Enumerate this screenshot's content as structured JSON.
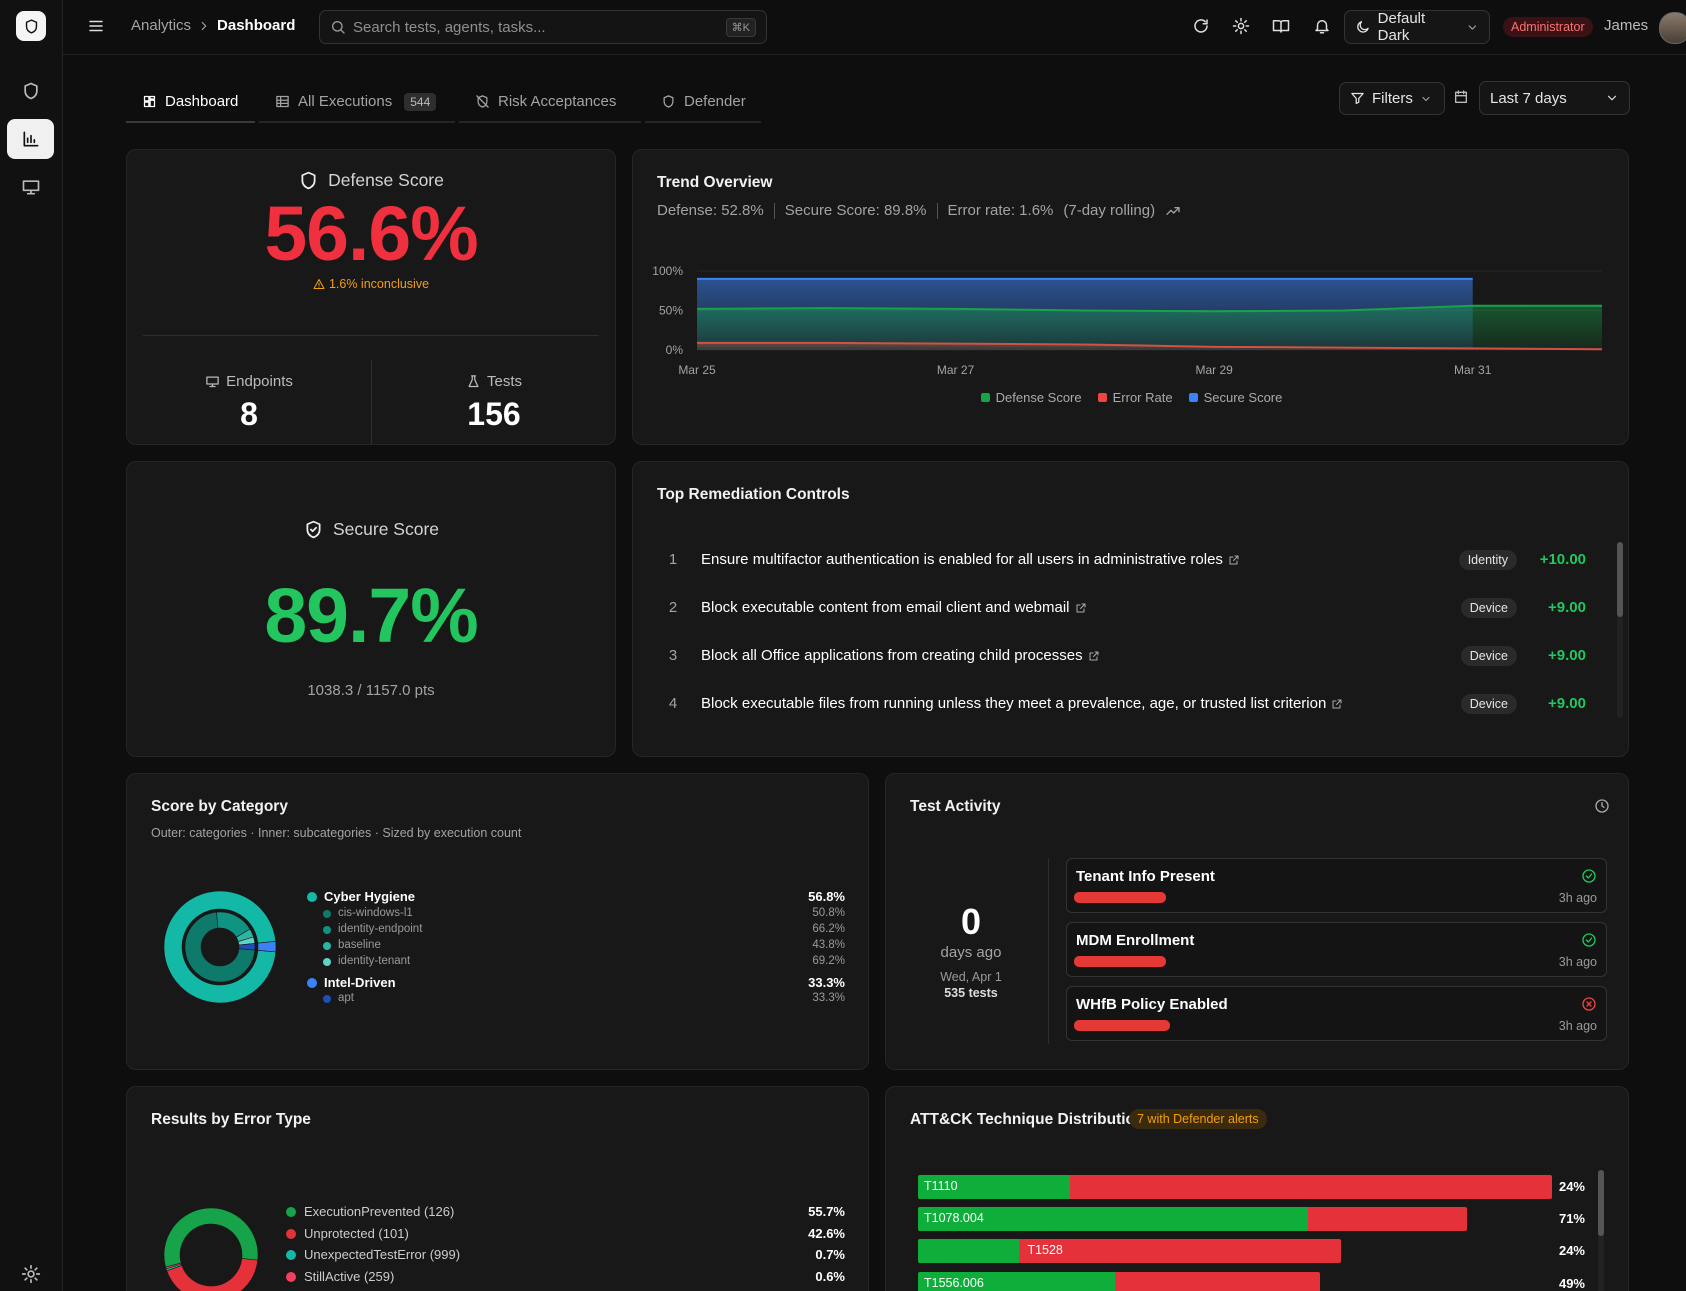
{
  "header": {
    "breadcrumb_parent": "Analytics",
    "breadcrumb_current": "Dashboard",
    "search_placeholder": "Search tests, agents, tasks...",
    "shortcut": "⌘K",
    "theme": "Default Dark",
    "role": "Administrator",
    "user": "James"
  },
  "tabs": {
    "items": [
      {
        "label": "Dashboard",
        "icon": "grid"
      },
      {
        "label": "All Executions",
        "icon": "table",
        "count": 544
      },
      {
        "label": "Risk Acceptances",
        "icon": "shieldoff"
      },
      {
        "label": "Defender",
        "icon": "shield"
      }
    ],
    "filters": "Filters",
    "range": "Last 7 days"
  },
  "defense_score": {
    "title": "Defense Score",
    "value": "56.6%",
    "note": "1.6% inconclusive",
    "endpoints_label": "Endpoints",
    "endpoints": 8,
    "tests_label": "Tests",
    "tests": 156
  },
  "secure_score": {
    "title": "Secure Score",
    "value": "89.7%",
    "points": "1038.3 / 1157.0 pts"
  },
  "remediation": {
    "title": "Top Remediation Controls",
    "items": [
      {
        "rank": 1,
        "title": "Ensure multifactor authentication is enabled for all users in administrative roles",
        "category": "Identity",
        "points": "+10.00"
      },
      {
        "rank": 2,
        "title": "Block executable content from email client and webmail",
        "category": "Device",
        "points": "+9.00"
      },
      {
        "rank": 3,
        "title": "Block all Office applications from creating child processes",
        "category": "Device",
        "points": "+9.00"
      },
      {
        "rank": 4,
        "title": "Block executable files from running unless they meet a prevalence, age, or trusted list criterion",
        "category": "Device",
        "points": "+9.00"
      }
    ]
  },
  "test_activity": {
    "title": "Test Activity",
    "days": 0,
    "days_label": "days ago",
    "date": "Wed, Apr 1",
    "tests": "535 tests",
    "items": [
      {
        "name": "Tenant Info Present",
        "status": "pass",
        "time": "3h ago"
      },
      {
        "name": "MDM Enrollment",
        "status": "pass",
        "time": "3h ago"
      },
      {
        "name": "WHfB Policy Enabled",
        "status": "fail",
        "time": "3h ago"
      }
    ]
  },
  "chart_data": [
    {
      "type": "area",
      "title": "Trend Overview",
      "stats": [
        "Defense: 52.8%",
        "Secure Score: 89.8%",
        "Error rate: 1.6%",
        "(7-day rolling)"
      ],
      "categories": [
        "Mar 25",
        null,
        "Mar 27",
        null,
        "Mar 29",
        null,
        "Mar 31",
        null
      ],
      "series": [
        {
          "name": "Defense Score",
          "color": "#16a34a",
          "values": [
            52,
            53,
            52,
            50,
            49,
            50,
            56,
            56
          ]
        },
        {
          "name": "Error Rate",
          "color": "#ef4444",
          "values": [
            9,
            9,
            8,
            7,
            4,
            3,
            2,
            1
          ]
        },
        {
          "name": "Secure Score",
          "color": "#3b82f6",
          "values": [
            90,
            90,
            90,
            90,
            90,
            90,
            90,
            null
          ]
        }
      ],
      "ylim": [
        0,
        100
      ],
      "yticks": [
        {
          "value": 0,
          "label": "0%"
        },
        {
          "value": 50,
          "label": "50%"
        },
        {
          "value": 100,
          "label": "100%"
        }
      ],
      "grid": true
    },
    {
      "type": "sunburst",
      "title": "Score by Category",
      "subtitle": "Outer: categories · Inner: subcategories · Sized by execution count",
      "groups": [
        {
          "name": "Cyber Hygiene",
          "color": "#14b8a6",
          "value": 56.8,
          "value_label": "56.8%",
          "share": 97,
          "children": [
            {
              "name": "cis-windows-l1",
              "color": "#0d7a6c",
              "value": 50.8,
              "value_label": "50.8%",
              "share": 72
            },
            {
              "name": "identity-endpoint",
              "color": "#0f9483",
              "value": 66.2,
              "value_label": "66.2%",
              "share": 18
            },
            {
              "name": "baseline",
              "color": "#2bb5a4",
              "value": 43.8,
              "value_label": "43.8%",
              "share": 4
            },
            {
              "name": "identity-tenant",
              "color": "#5fd3c4",
              "value": 69.2,
              "value_label": "69.2%",
              "share": 3
            }
          ]
        },
        {
          "name": "Intel-Driven",
          "color": "#3b82f6",
          "value": 33.3,
          "value_label": "33.3%",
          "share": 3,
          "children": [
            {
              "name": "apt",
              "color": "#1e4fb8",
              "value": 33.3,
              "value_label": "33.3%",
              "share": 3
            }
          ]
        }
      ]
    },
    {
      "type": "donut",
      "title": "Results by Error Type",
      "categories": [
        "ExecutionPrevented (126)",
        "Unprotected (101)",
        "UnexpectedTestError (999)",
        "StillActive (259)"
      ],
      "values": [
        55.7,
        42.6,
        0.7,
        0.6
      ],
      "value_labels": [
        "55.7%",
        "42.6%",
        "0.7%",
        "0.6%"
      ],
      "colors": [
        "#16a34a",
        "#e5313a",
        "#14b8a6",
        "#f43f5e"
      ]
    },
    {
      "type": "stacked-bar",
      "title": "ATT&CK Technique Distribution",
      "badge": "7 with Defender alerts",
      "categories": [
        "T1110",
        "T1078.004",
        "T1528",
        "T1556.006"
      ],
      "totals": [
        30,
        26,
        20,
        19
      ],
      "values": [
        24,
        71,
        24,
        49
      ],
      "value_labels": [
        "24%",
        "71%",
        "24%",
        "49%"
      ],
      "pass_color": "#0fae3a",
      "fail_color": "#e5313a",
      "xlim": [
        0,
        30
      ]
    }
  ]
}
